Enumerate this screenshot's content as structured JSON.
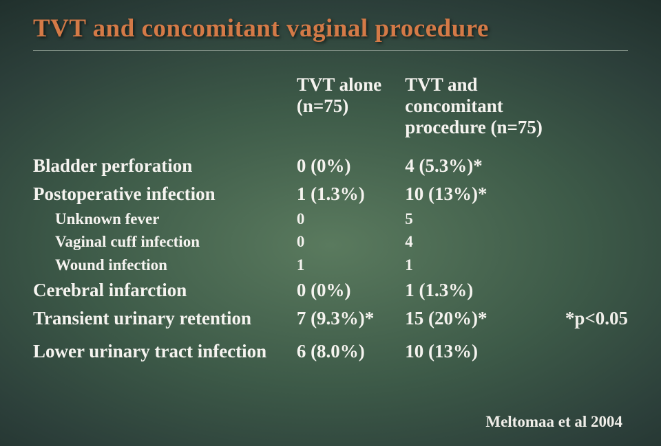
{
  "title": "TVT and concomitant vaginal procedure",
  "header": {
    "blank": "",
    "colA_line1": "TVT alone",
    "colA_line2": "(n=75)",
    "colB_line1": "TVT and concomitant",
    "colB_line2": "procedure (n=75)"
  },
  "rows": {
    "r1": {
      "label": "Bladder perforation",
      "a": "0 (0%)",
      "b": "4 (5.3%)*"
    },
    "r2": {
      "label": "Postoperative infection",
      "a": "1 (1.3%)",
      "b": "10 (13%)*"
    },
    "s1": {
      "label": "Unknown fever",
      "a": "0",
      "b": "5"
    },
    "s2": {
      "label": "Vaginal cuff infection",
      "a": "0",
      "b": "4"
    },
    "s3": {
      "label": "Wound infection",
      "a": "1",
      "b": "1"
    },
    "r3": {
      "label": "Cerebral infarction",
      "a": "0 (0%)",
      "b": "1 (1.3%)"
    },
    "r4": {
      "label": "Transient urinary retention",
      "a": "7 (9.3%)*",
      "b": "15 (20%)*"
    },
    "r5": {
      "label": "Lower urinary tract infection",
      "a": "6 (8.0%)",
      "b": "10 (13%)"
    }
  },
  "footnote": "*p<0.05",
  "citation": "Meltomaa et al 2004",
  "style": {
    "title_color": "#d47a47",
    "text_color": "#f5f3ef",
    "title_fontsize": 37,
    "main_fontsize": 27,
    "sub_fontsize": 23,
    "note_fontsize": 21,
    "citation_fontsize": 23,
    "bg_center": "#5a7a5e",
    "bg_edge": "#0f1815"
  }
}
